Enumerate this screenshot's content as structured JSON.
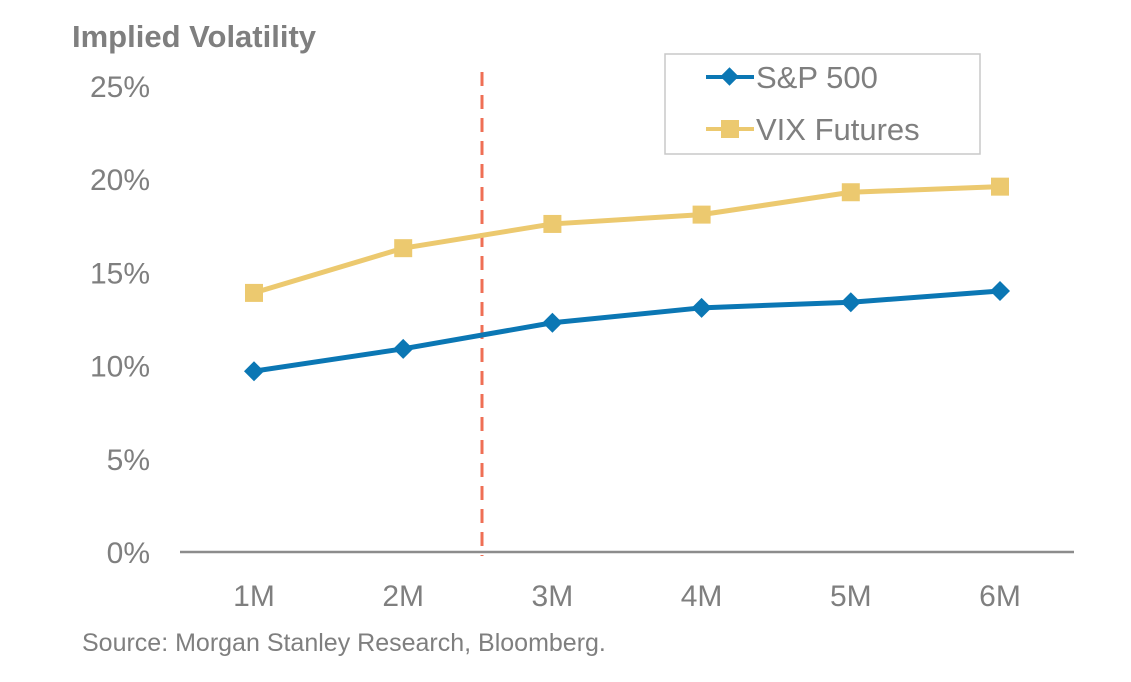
{
  "chart_data": {
    "type": "line",
    "title": "",
    "ylabel": "Implied Volatility",
    "xlabel": "",
    "categories": [
      "1M",
      "2M",
      "3M",
      "4M",
      "5M",
      "6M"
    ],
    "y_ticks": [
      "0%",
      "5%",
      "10%",
      "15%",
      "20%",
      "25%"
    ],
    "y_tick_values": [
      0,
      5,
      10,
      15,
      20,
      25
    ],
    "ylim": [
      0,
      25
    ],
    "grid": false,
    "series": [
      {
        "name": "S&P 500",
        "color": "#0b77b4",
        "marker": "diamond",
        "values": [
          9.7,
          10.9,
          12.3,
          13.1,
          13.4,
          14.0
        ]
      },
      {
        "name": "VIX Futures",
        "color": "#ecc96f",
        "marker": "square",
        "values": [
          13.9,
          16.3,
          17.6,
          18.1,
          19.3,
          19.6
        ]
      }
    ],
    "annotations": [
      {
        "type": "vertical-dashed-line",
        "x_between": [
          "2M",
          "3M"
        ],
        "color": "#ef6f55"
      }
    ],
    "legend": {
      "placement": "top-right",
      "entries": [
        "S&P 500",
        "VIX Futures"
      ]
    },
    "source": "Source: Morgan Stanley Research, Bloomberg."
  }
}
